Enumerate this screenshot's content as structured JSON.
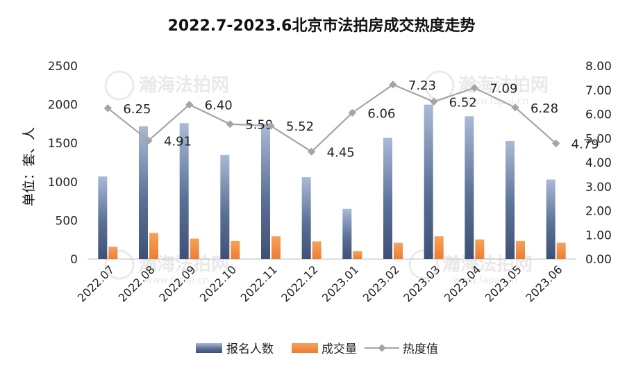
{
  "chart_data": {
    "type": "bar",
    "title": "2022.7-2023.6北京市法拍房成交热度走势",
    "ylabel": "单位：套、人",
    "categories": [
      "2022.07",
      "2022.08",
      "2022.09",
      "2022.10",
      "2022.11",
      "2022.12",
      "2023.01",
      "2023.02",
      "2023.03",
      "2023.04",
      "2023.05",
      "2023.06"
    ],
    "series": [
      {
        "name": "报名人数",
        "axis": "left",
        "type": "bar",
        "color": "#44546a",
        "values": [
          1070,
          1720,
          1760,
          1350,
          1750,
          1060,
          650,
          1570,
          2000,
          1850,
          1530,
          1030
        ]
      },
      {
        "name": "成交量",
        "axis": "left",
        "type": "bar",
        "color": "#ed7d31",
        "values": [
          160,
          340,
          265,
          235,
          295,
          230,
          105,
          210,
          295,
          255,
          235,
          210
        ]
      },
      {
        "name": "热度值",
        "axis": "right",
        "type": "line",
        "color": "#a5a5a5",
        "values": [
          6.25,
          4.91,
          6.4,
          5.59,
          5.52,
          4.45,
          6.06,
          7.23,
          6.52,
          7.09,
          6.28,
          4.79
        ],
        "labels": [
          "6.25",
          "4.91",
          "6.40",
          "5.59",
          "5.52",
          "4.45",
          "6.06",
          "7.23",
          "6.52",
          "7.09",
          "6.28",
          "4.79"
        ]
      }
    ],
    "ylim_left": [
      0,
      2500
    ],
    "yticks_left": [
      "0",
      "500",
      "1000",
      "1500",
      "2000",
      "2500"
    ],
    "ylim_right": [
      0,
      8
    ],
    "yticks_right": [
      "0.00",
      "1.00",
      "2.00",
      "3.00",
      "4.00",
      "5.00",
      "6.00",
      "7.00",
      "8.00"
    ],
    "grid": false,
    "legend_position": "bottom"
  },
  "watermark": {
    "text": "瀚海法拍网",
    "url": "www.fapai.cn"
  }
}
